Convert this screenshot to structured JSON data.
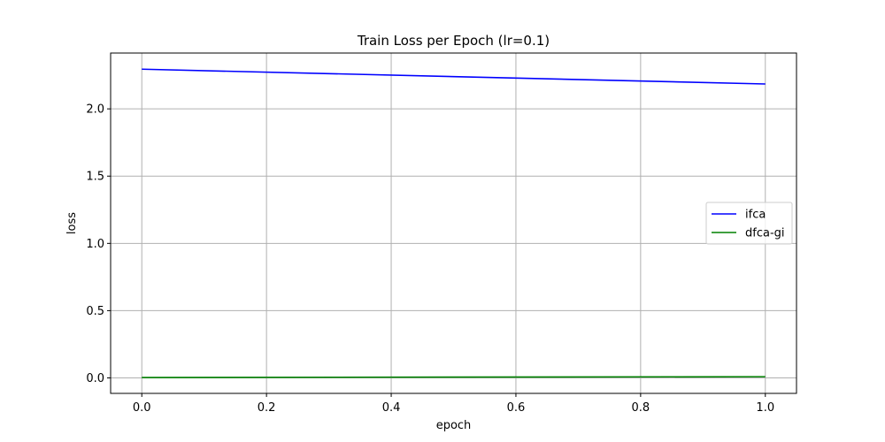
{
  "chart_data": {
    "type": "line",
    "title": "Train Loss per Epoch (lr=0.1)",
    "xlabel": "epoch",
    "ylabel": "loss",
    "xlim": [
      -0.05,
      1.05
    ],
    "ylim": [
      -0.115,
      2.415
    ],
    "xticks": [
      0.0,
      0.2,
      0.4,
      0.6,
      0.8,
      1.0
    ],
    "xtick_labels": [
      "0.0",
      "0.2",
      "0.4",
      "0.6",
      "0.8",
      "1.0"
    ],
    "yticks": [
      0.0,
      0.5,
      1.0,
      1.5,
      2.0
    ],
    "ytick_labels": [
      "0.0",
      "0.5",
      "1.0",
      "1.5",
      "2.0"
    ],
    "grid": true,
    "legend_position": "center-right",
    "x": [
      0,
      1
    ],
    "series": [
      {
        "name": "ifca",
        "values": [
          2.295,
          2.185
        ],
        "color": "#0000ff"
      },
      {
        "name": "dfca-gi",
        "values": [
          0.003,
          0.009
        ],
        "color": "#008000"
      }
    ]
  }
}
